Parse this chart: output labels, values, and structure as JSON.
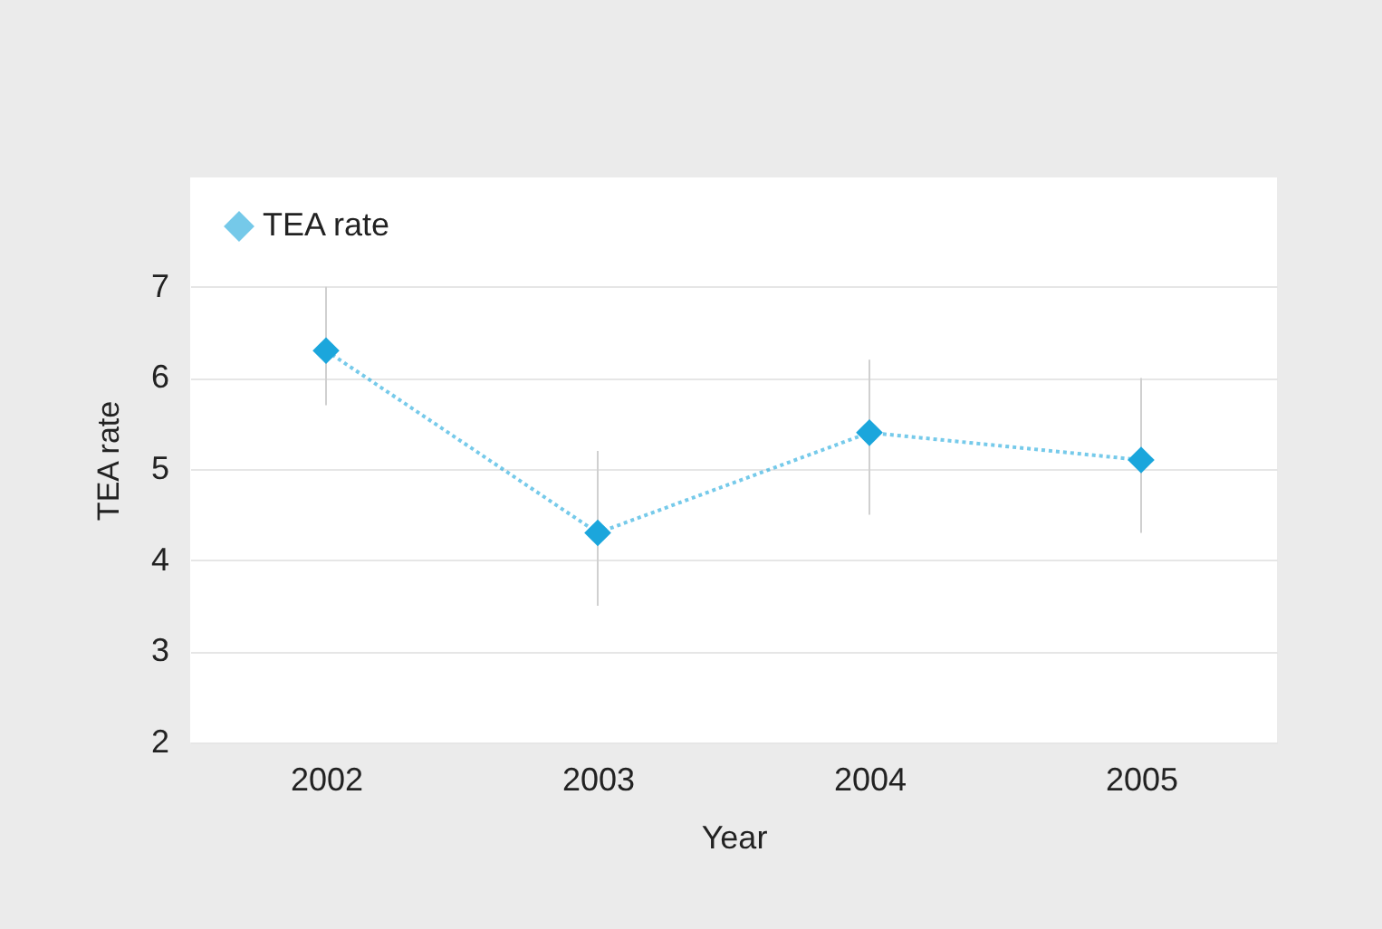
{
  "chart_data": {
    "type": "line",
    "xlabel": "Year",
    "ylabel": "TEA rate",
    "categories": [
      "2002",
      "2003",
      "2004",
      "2005"
    ],
    "series": [
      {
        "name": "TEA rate",
        "color": "#1ba6dc",
        "values": [
          6.3,
          4.3,
          5.4,
          5.1
        ],
        "errors": [
          [
            5.7,
            7.0
          ],
          [
            3.5,
            5.2
          ],
          [
            4.5,
            6.2
          ],
          [
            4.3,
            6.0
          ]
        ]
      }
    ],
    "ylim": [
      2,
      8.2
    ],
    "yticks": [
      2,
      3,
      4,
      5,
      6,
      7
    ],
    "grid": "y",
    "legend": "top left",
    "marker": "diamond",
    "line_style": "dotted"
  }
}
